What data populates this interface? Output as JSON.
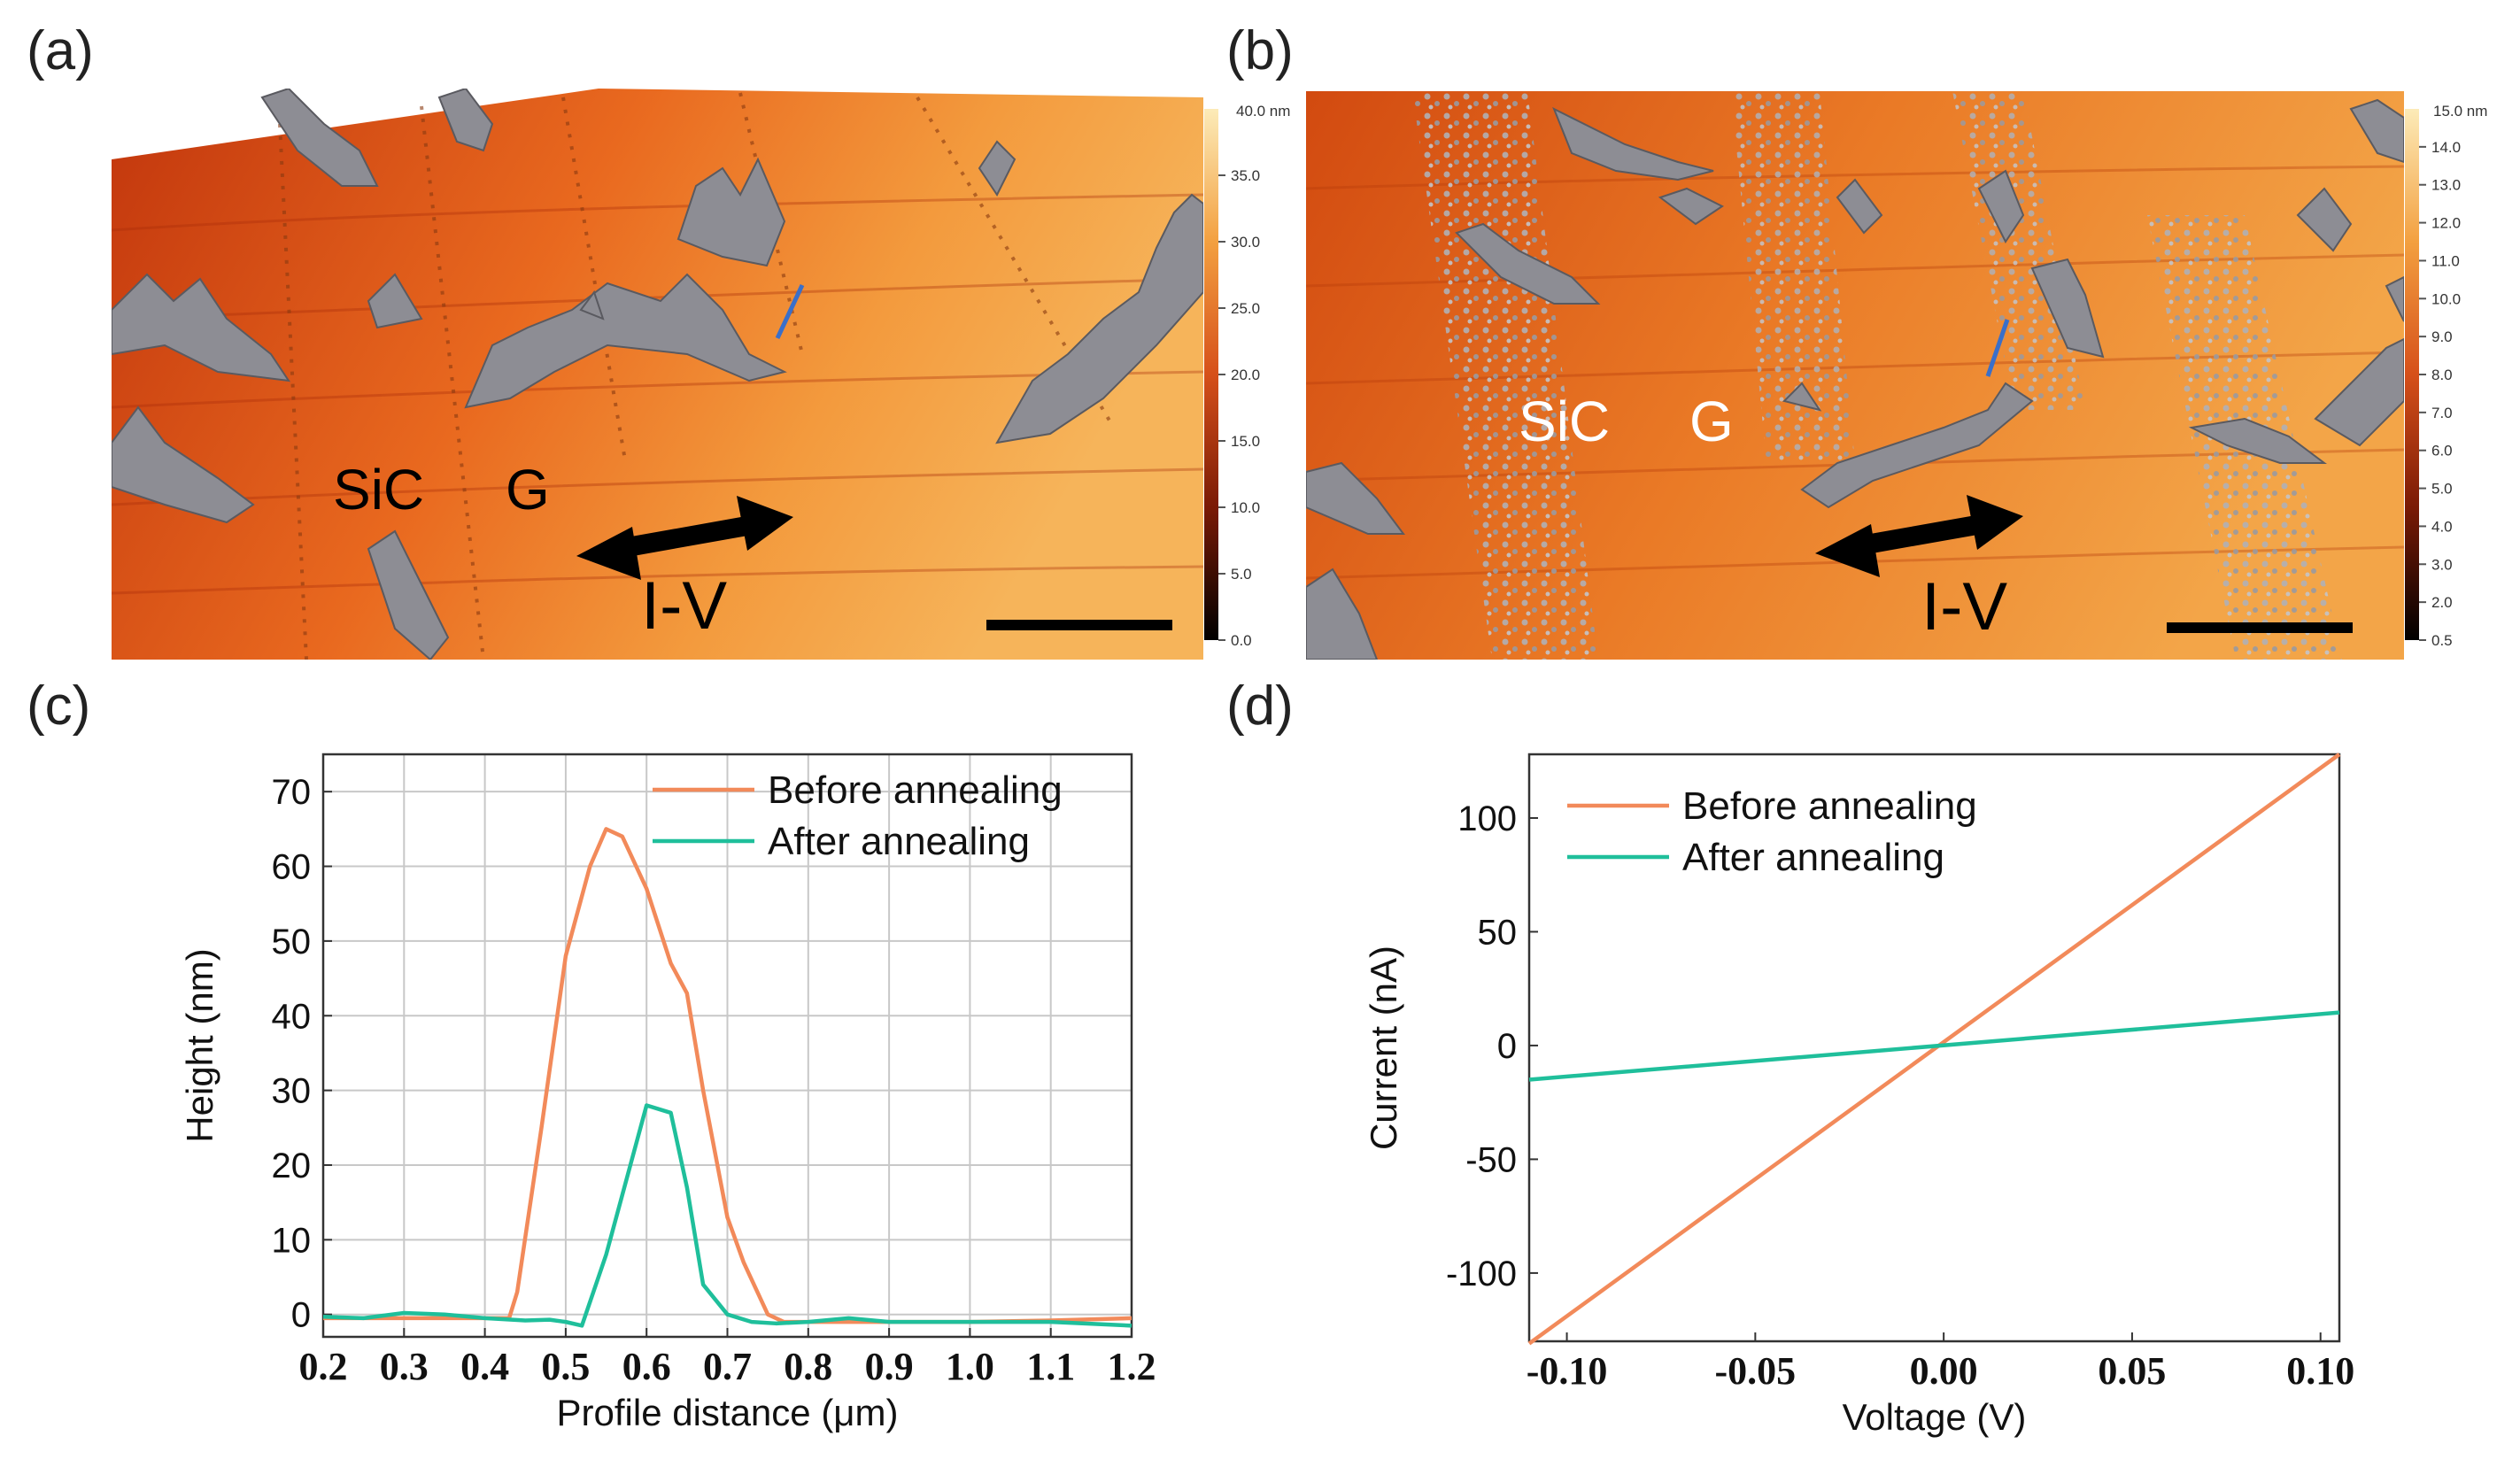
{
  "panels": {
    "a": "(a)",
    "b": "(b)",
    "c": "(c)",
    "d": "(d)"
  },
  "afm_a": {
    "labels": {
      "sic": "SiC",
      "g": "G",
      "iv": "I-V"
    },
    "colorbar": {
      "unit_label": "40.0 nm",
      "ticks": [
        "0.0",
        "5.0",
        "10.0",
        "15.0",
        "20.0",
        "25.0",
        "30.0",
        "35.0"
      ]
    }
  },
  "afm_b": {
    "labels": {
      "sic": "SiC",
      "g": "G",
      "iv": "I-V"
    },
    "colorbar": {
      "unit_label": "15.0 nm",
      "ticks": [
        "0.5",
        "2.0",
        "3.0",
        "4.0",
        "5.0",
        "6.0",
        "7.0",
        "8.0",
        "9.0",
        "10.0",
        "11.0",
        "12.0",
        "13.0",
        "14.0"
      ]
    }
  },
  "colors": {
    "before": "#f28a5a",
    "after": "#1fbf9b",
    "afm_dark": "#b8300a",
    "afm_mid": "#e8651e",
    "afm_light": "#f4a646"
  },
  "chart_data": [
    {
      "type": "line",
      "id": "c",
      "xlabel": "Profile distance (μm)",
      "ylabel": "Height (nm)",
      "xlim": [
        0.2,
        1.2
      ],
      "ylim": [
        -3,
        75
      ],
      "xticks": [
        0.2,
        0.3,
        0.4,
        0.5,
        0.6,
        0.7,
        0.8,
        0.9,
        1.0,
        1.1,
        1.2
      ],
      "xtick_labels": [
        "0.2",
        "0.3",
        "0.4",
        "0.5",
        "0.6",
        "0.7",
        "0.8",
        "0.9",
        "1.0",
        "1.1",
        "1.2"
      ],
      "yticks": [
        0,
        10,
        20,
        30,
        40,
        50,
        60,
        70
      ],
      "ytick_labels": [
        "0",
        "10",
        "20",
        "30",
        "40",
        "50",
        "60",
        "70"
      ],
      "grid": true,
      "legend": "top-right",
      "series": [
        {
          "name": "Before annealing",
          "color": "#f28a5a",
          "x": [
            0.2,
            0.3,
            0.43,
            0.44,
            0.47,
            0.5,
            0.53,
            0.55,
            0.57,
            0.6,
            0.63,
            0.65,
            0.67,
            0.7,
            0.72,
            0.75,
            0.77,
            0.8,
            0.9,
            1.0,
            1.1,
            1.2
          ],
          "y": [
            -0.5,
            -0.5,
            -0.5,
            3,
            25,
            48,
            60,
            65,
            64,
            57,
            47,
            43,
            30,
            13,
            7,
            0,
            -1,
            -1,
            -1,
            -1,
            -0.8,
            -0.5
          ]
        },
        {
          "name": "After annealing",
          "color": "#1fbf9b",
          "x": [
            0.2,
            0.25,
            0.3,
            0.35,
            0.4,
            0.45,
            0.48,
            0.5,
            0.52,
            0.55,
            0.58,
            0.6,
            0.63,
            0.65,
            0.67,
            0.7,
            0.73,
            0.76,
            0.8,
            0.85,
            0.9,
            1.0,
            1.1,
            1.2
          ],
          "y": [
            -0.3,
            -0.5,
            0.2,
            0,
            -0.5,
            -0.8,
            -0.7,
            -1,
            -1.5,
            8,
            20,
            28,
            27,
            17,
            4,
            0,
            -1,
            -1.2,
            -1,
            -0.5,
            -1,
            -1,
            -1,
            -1.5
          ]
        }
      ]
    },
    {
      "type": "line",
      "id": "d",
      "xlabel": "Voltage (V)",
      "ylabel": "Current (nA)",
      "xlim": [
        -0.11,
        0.105
      ],
      "ylim": [
        -130,
        128
      ],
      "xticks": [
        -0.1,
        -0.05,
        0.0,
        0.05,
        0.1
      ],
      "xtick_labels": [
        "-0.10",
        "-0.05",
        "0.00",
        "0.05",
        "0.10"
      ],
      "yticks": [
        -100,
        -50,
        0,
        50,
        100
      ],
      "ytick_labels": [
        "-100",
        "-50",
        "0",
        "50",
        "100"
      ],
      "grid": false,
      "legend": "top-left",
      "series": [
        {
          "name": "Before annealing",
          "color": "#f28a5a",
          "x": [
            -0.11,
            0.105
          ],
          "y": [
            -131,
            128
          ]
        },
        {
          "name": "After annealing",
          "color": "#1fbf9b",
          "x": [
            -0.11,
            0.105
          ],
          "y": [
            -15,
            14.5
          ]
        }
      ]
    }
  ]
}
